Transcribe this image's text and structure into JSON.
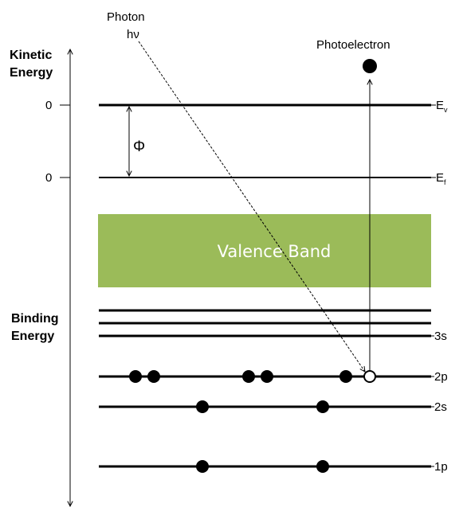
{
  "axis": {
    "kinetic_label_line1": "Kinetic",
    "kinetic_label_line2": "Energy",
    "binding_label_line1": "Binding",
    "binding_label_line2": "Energy",
    "tick_vacuum": "0",
    "tick_fermi": "0"
  },
  "photon": {
    "label_line1": "Photon",
    "label_line2": "hν"
  },
  "photoelectron_label": "Photoelectron",
  "work_function_symbol": "Φ",
  "valence_band_label": "Valence Band",
  "levels": {
    "vacuum": {
      "main": "E",
      "sub": "v"
    },
    "fermi": {
      "main": "E",
      "sub": "f"
    },
    "s3": "3s",
    "p2": "2p",
    "s2": "2s",
    "p1": "1p"
  },
  "colors": {
    "valence_band": "#9bbb59",
    "line": "#000000"
  }
}
